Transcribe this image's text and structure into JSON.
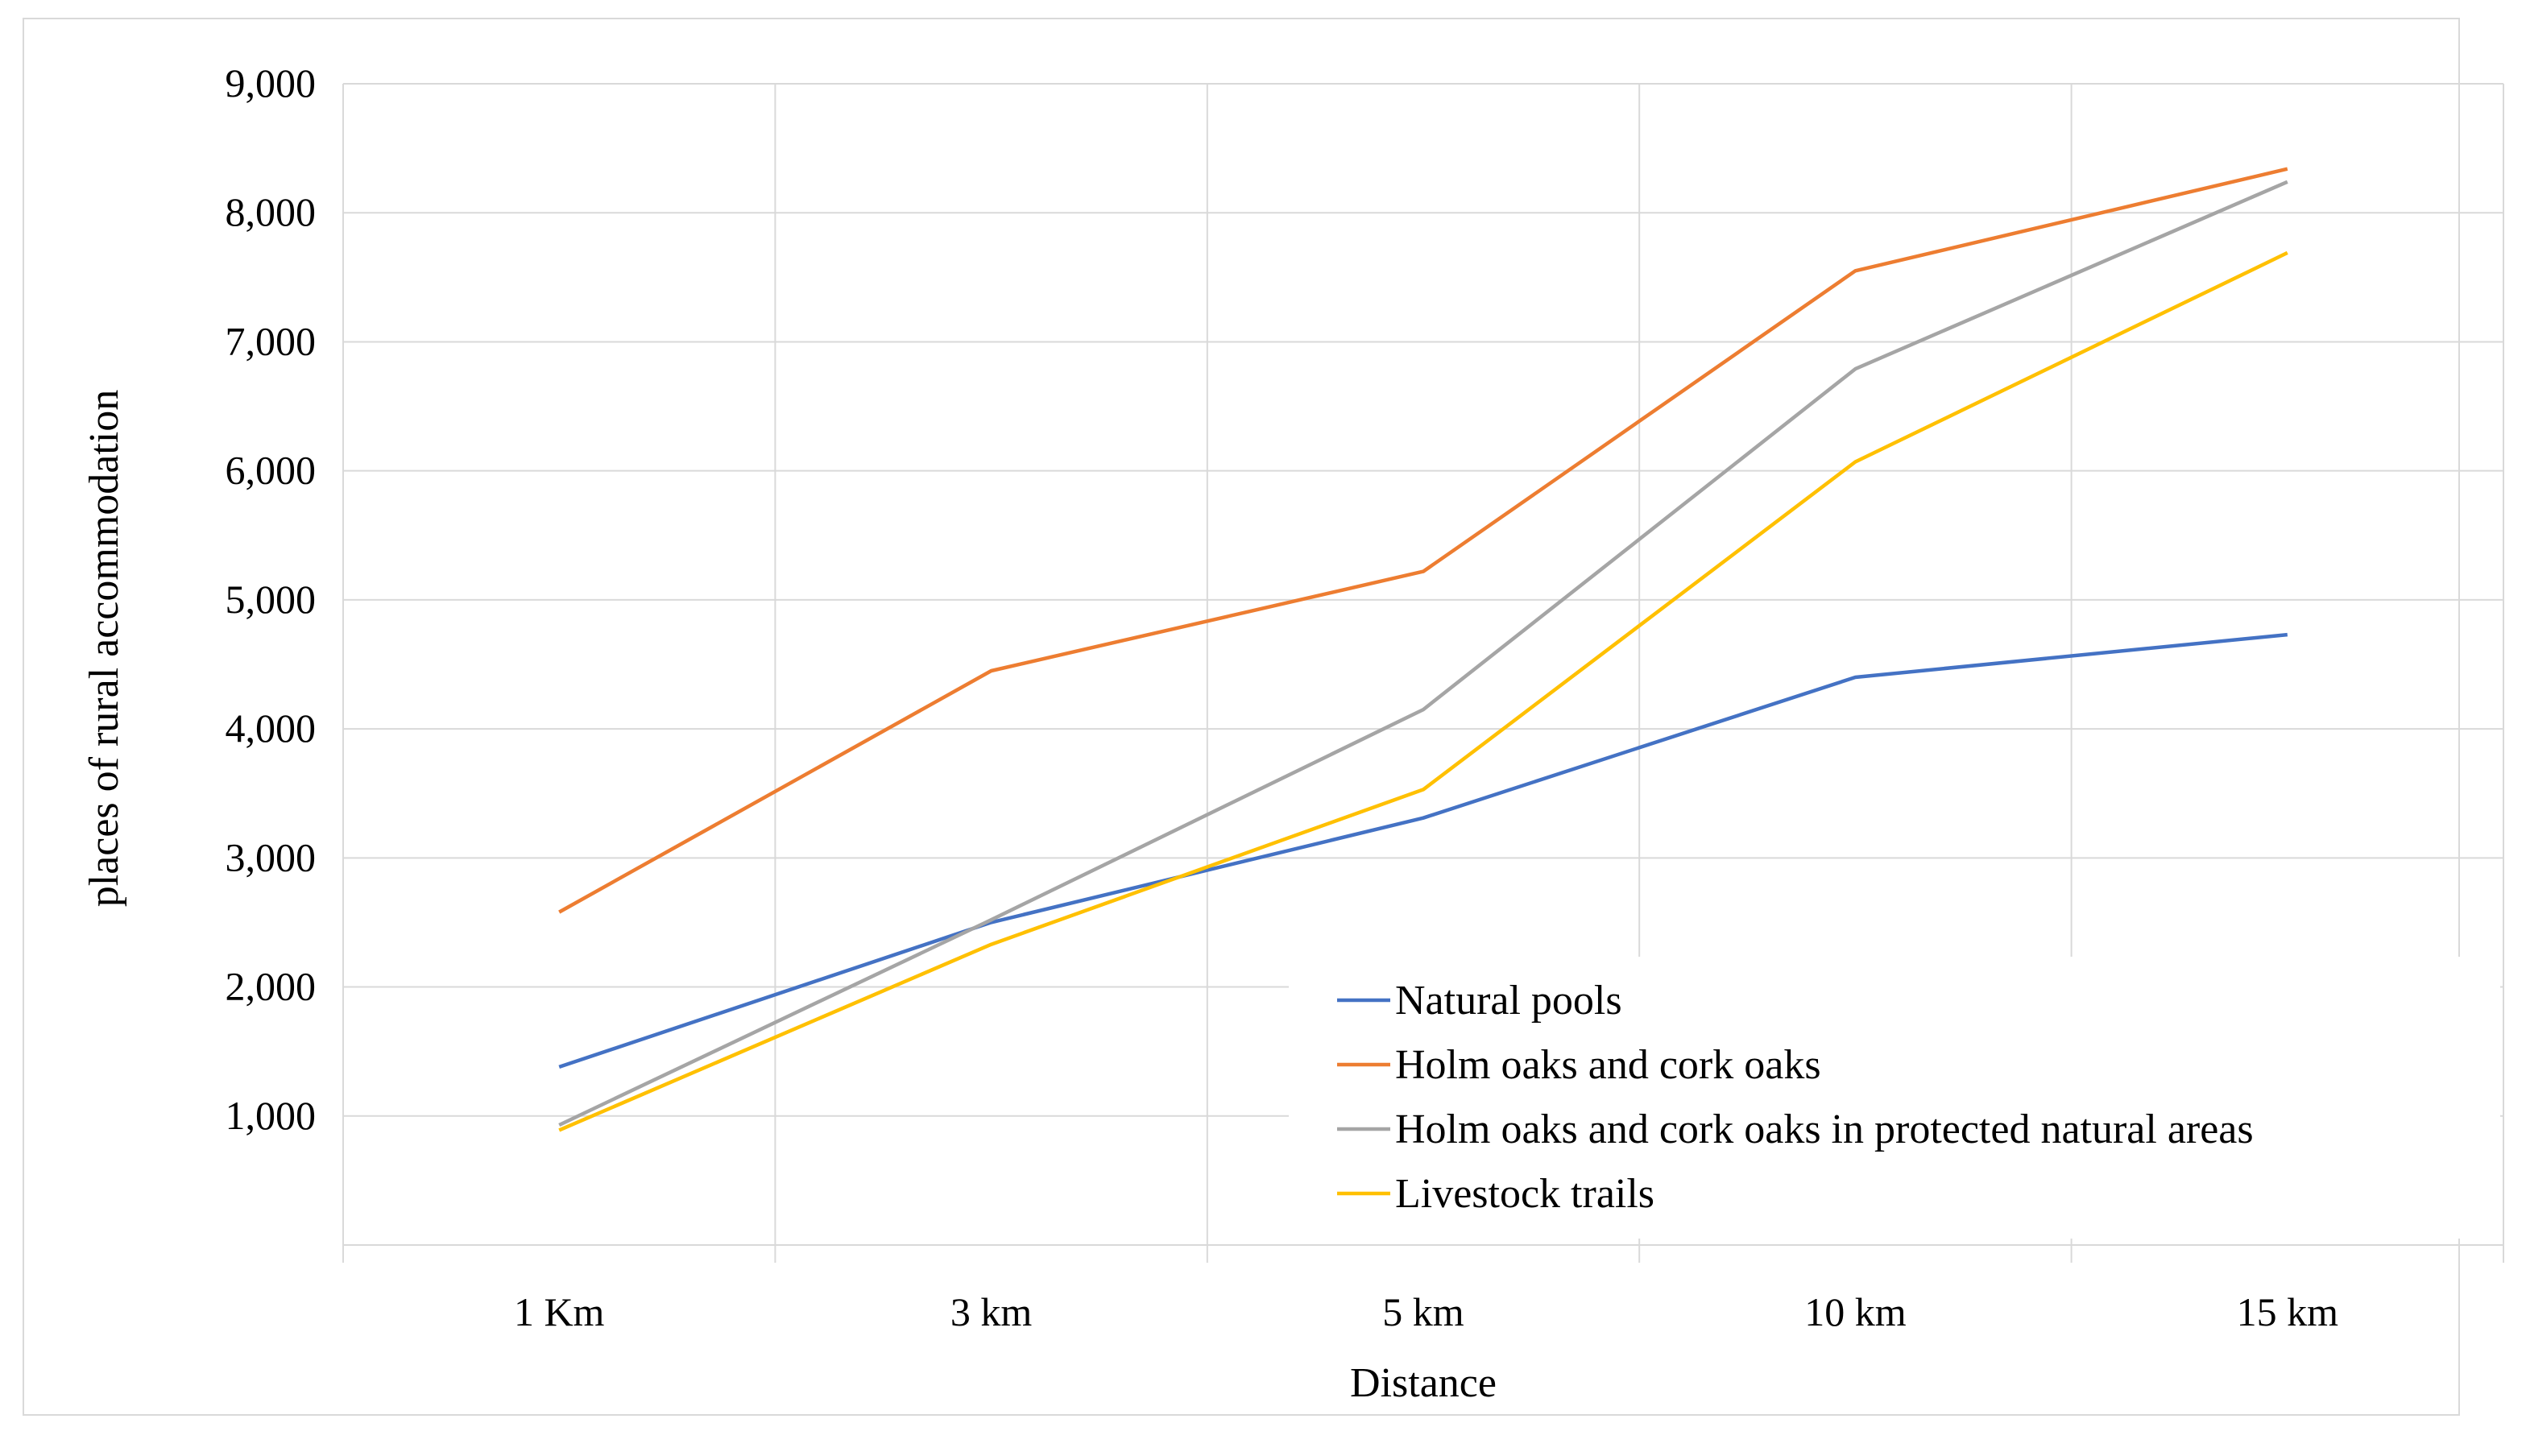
{
  "chart_data": {
    "type": "line",
    "title": "",
    "xlabel": "Distance",
    "ylabel": "places of rural accommodation",
    "categories": [
      "1 Km",
      "3 km",
      "5 km",
      "10 km",
      "15 km"
    ],
    "y_ticks": [
      "",
      "1,000",
      "2,000",
      "3,000",
      "4,000",
      "5,000",
      "6,000",
      "7,000",
      "8,000",
      "9,000"
    ],
    "ylim": [
      0,
      9000
    ],
    "grid": true,
    "legend_position": "bottom-right",
    "series": [
      {
        "name": "Natural pools",
        "color": "#4472c4",
        "values": [
          1380,
          2500,
          3310,
          4400,
          4730
        ]
      },
      {
        "name": "Holm oaks and cork oaks",
        "color": "#ed7d31",
        "values": [
          2580,
          4450,
          5220,
          7550,
          8340
        ]
      },
      {
        "name": "Holm oaks and cork oaks in protected natural areas",
        "color": "#a5a5a5",
        "values": [
          930,
          2520,
          4150,
          6790,
          8240
        ]
      },
      {
        "name": "Livestock trails",
        "color": "#ffc000",
        "values": [
          890,
          2330,
          3530,
          6070,
          7690
        ]
      }
    ]
  }
}
